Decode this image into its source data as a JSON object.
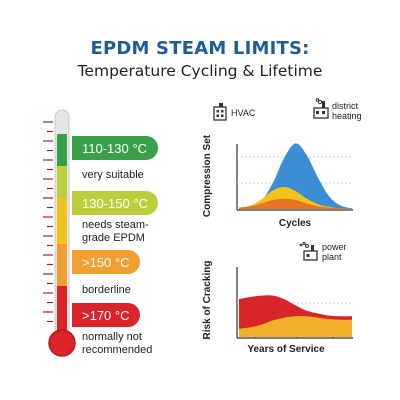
{
  "header": {
    "title": "EPDM STEAM LIMITS:",
    "subtitle": "Temperature Cycling & Lifetime"
  },
  "colors": {
    "green": "#3aa047",
    "yellow_green": "#bccf3a",
    "yellow": "#f0c21c",
    "orange": "#f0a030",
    "red": "#d9252a",
    "blue": "#3b8ed4",
    "title_blue": "#1e5e97"
  },
  "thermometer": {
    "bands": [
      {
        "label": "110-130 °C",
        "note": "very suitable",
        "color": "#3aa047"
      },
      {
        "label": "130-150 °C",
        "note": "needs steam-grade EPDM",
        "color": "#bccf3a"
      },
      {
        "label": ">150 °C",
        "note": "borderline",
        "color": "#f0a030"
      },
      {
        "label": ">170 °C",
        "note": "normally not recommended",
        "color": "#d9252a"
      }
    ]
  },
  "icons": {
    "hvac": {
      "name": "hvac-building-icon",
      "label": "HVAC"
    },
    "district_heating": {
      "name": "district-heating-plant-icon",
      "label": "district heating"
    },
    "power_plant": {
      "name": "power-plant-icon",
      "label": "power plant"
    }
  },
  "chart_data": [
    {
      "type": "area",
      "xlabel": "Cycles",
      "ylabel": "Compression Set",
      "x": [
        0,
        1,
        2,
        3,
        4,
        5,
        6,
        7,
        8,
        9,
        10
      ],
      "ylim": [
        0,
        1
      ],
      "series": [
        {
          "color": "#3b8ed4",
          "values": [
            0.02,
            0.04,
            0.12,
            0.38,
            0.74,
            0.95,
            0.78,
            0.45,
            0.18,
            0.05,
            0.01
          ]
        },
        {
          "color": "#f0c21c",
          "values": [
            0.02,
            0.05,
            0.14,
            0.27,
            0.32,
            0.26,
            0.15,
            0.07,
            0.03,
            0.01,
            0.0
          ]
        },
        {
          "color": "#e87423",
          "values": [
            0.02,
            0.04,
            0.08,
            0.13,
            0.15,
            0.13,
            0.08,
            0.04,
            0.02,
            0.01,
            0.0
          ]
        }
      ]
    },
    {
      "type": "area",
      "xlabel": "Years of Service",
      "ylabel": "Risk of Cracking",
      "x": [
        0,
        1,
        2,
        3,
        4,
        5,
        6,
        7,
        8,
        9,
        10
      ],
      "ylim": [
        0,
        1
      ],
      "series": [
        {
          "color": "#d9252a",
          "values": [
            0.55,
            0.58,
            0.6,
            0.6,
            0.55,
            0.46,
            0.38,
            0.34,
            0.31,
            0.3,
            0.3
          ]
        },
        {
          "color": "#f0b02a",
          "values": [
            0.12,
            0.14,
            0.18,
            0.24,
            0.28,
            0.3,
            0.3,
            0.28,
            0.26,
            0.25,
            0.25
          ]
        }
      ]
    }
  ]
}
